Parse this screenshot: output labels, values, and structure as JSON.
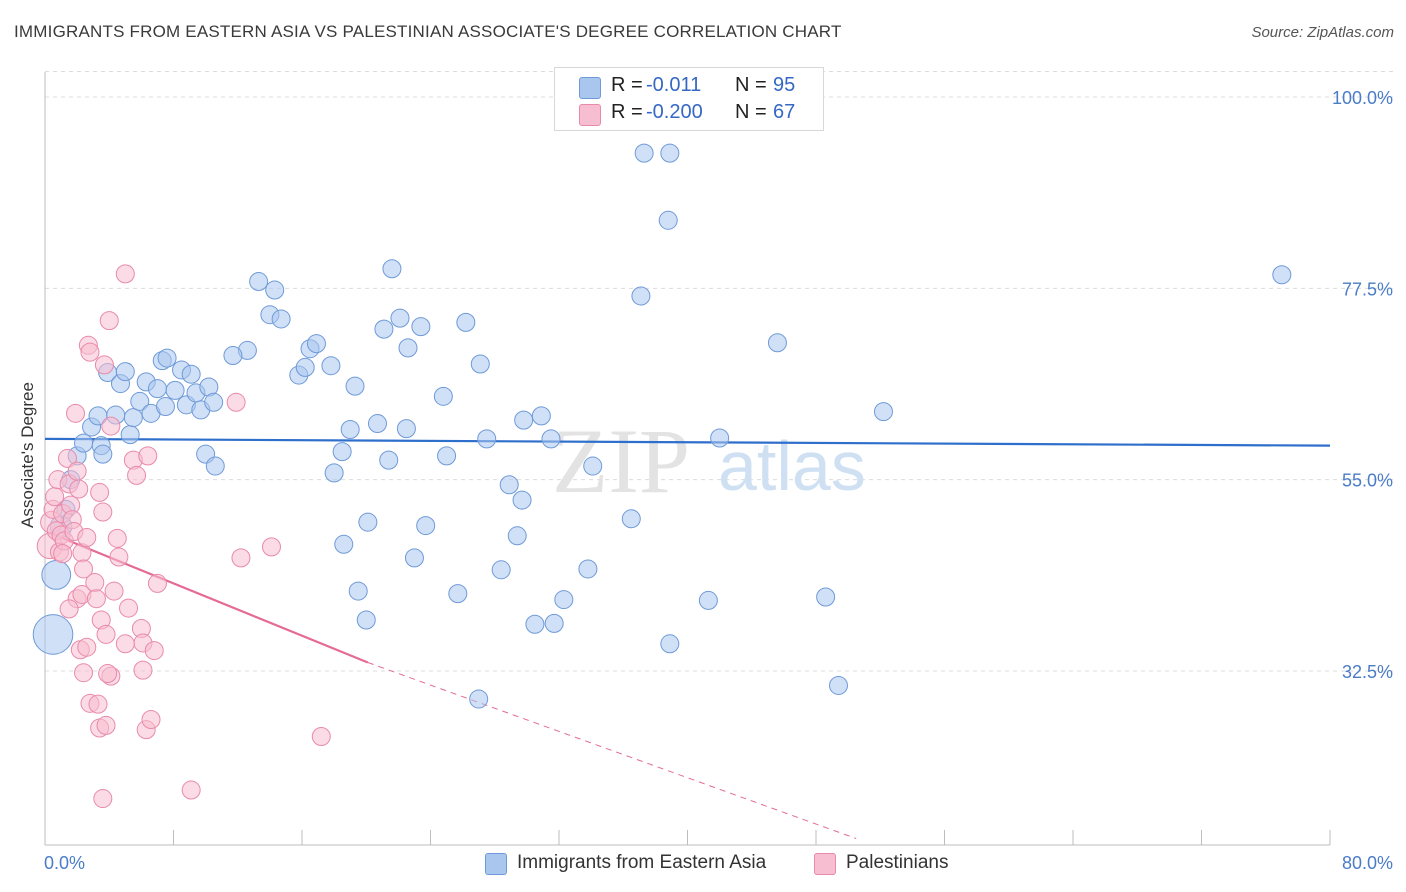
{
  "title": "IMMIGRANTS FROM EASTERN ASIA VS PALESTINIAN ASSOCIATE'S DEGREE CORRELATION CHART",
  "source": "Source: ZipAtlas.com",
  "watermark": {
    "part1": "ZIP",
    "part2": "atlas"
  },
  "legend": {
    "rows": [
      {
        "r_label": "R =",
        "r_value": "-0.011",
        "n_label": "N =",
        "n_value": "95",
        "color": "#a9c6ee",
        "edge": "#6f9ad8"
      },
      {
        "r_label": "R =",
        "r_value": "-0.200",
        "n_label": "N =",
        "n_value": "67",
        "color": "#f7bdd0",
        "edge": "#e98aab"
      }
    ]
  },
  "bottom_legend": [
    {
      "label": "Immigrants from Eastern Asia",
      "color": "#a9c6ee",
      "edge": "#6f9ad8"
    },
    {
      "label": "Palestinians",
      "color": "#f7bdd0",
      "edge": "#e98aab"
    }
  ],
  "chart_data": {
    "type": "scatter",
    "title": "IMMIGRANTS FROM EASTERN ASIA VS PALESTINIAN ASSOCIATE'S DEGREE CORRELATION CHART",
    "xlabel": "",
    "ylabel": "Associate's Degree",
    "xlim": [
      0,
      80
    ],
    "ylim": [
      13,
      103
    ],
    "x_tick_labels": [
      {
        "value": 0,
        "label": "0.0%"
      },
      {
        "value": 80,
        "label": "80.0%"
      }
    ],
    "y_tick_labels": [
      {
        "value": 100,
        "label": "100.0%"
      },
      {
        "value": 77.5,
        "label": "77.5%"
      },
      {
        "value": 55,
        "label": "55.0%"
      },
      {
        "value": 32.5,
        "label": "32.5%"
      }
    ],
    "grid": true,
    "legend_position": "top-center",
    "series": [
      {
        "name": "Immigrants from Eastern Asia",
        "color": "#a9c6ee",
        "edge": "#6f9ad8",
        "trend": {
          "x": [
            0,
            80
          ],
          "y": [
            59.8,
            59.0
          ],
          "color": "#2f6fcc"
        },
        "points": [
          [
            0.5,
            36.8,
            2.2
          ],
          [
            0.7,
            43.8,
            1.6
          ],
          [
            1.0,
            49.5,
            1.2
          ],
          [
            1.3,
            51.5,
            1.0
          ],
          [
            1.6,
            55.0,
            1.0
          ],
          [
            2.0,
            57.8,
            1.0
          ],
          [
            2.4,
            59.3,
            1.0
          ],
          [
            2.9,
            61.2,
            1.0
          ],
          [
            3.3,
            62.5,
            1.0
          ],
          [
            3.5,
            59.0,
            1.0
          ],
          [
            3.6,
            58.0,
            1.0
          ],
          [
            3.9,
            67.6,
            1.0
          ],
          [
            4.4,
            62.6,
            1.0
          ],
          [
            4.7,
            66.3,
            1.0
          ],
          [
            5.0,
            67.7,
            1.0
          ],
          [
            5.3,
            60.3,
            1.0
          ],
          [
            5.5,
            62.3,
            1.0
          ],
          [
            5.9,
            64.2,
            1.0
          ],
          [
            6.3,
            66.5,
            1.0
          ],
          [
            6.6,
            62.8,
            1.0
          ],
          [
            7.0,
            65.7,
            1.0
          ],
          [
            7.3,
            69.0,
            1.0
          ],
          [
            7.6,
            69.3,
            1.0
          ],
          [
            7.5,
            63.6,
            1.0
          ],
          [
            8.1,
            65.5,
            1.0
          ],
          [
            8.5,
            67.9,
            1.0
          ],
          [
            8.8,
            63.8,
            1.0
          ],
          [
            9.1,
            67.4,
            1.0
          ],
          [
            9.4,
            65.2,
            1.0
          ],
          [
            9.7,
            63.2,
            1.0
          ],
          [
            10.2,
            65.9,
            1.0
          ],
          [
            10.5,
            64.1,
            1.0
          ],
          [
            10.0,
            58.0,
            1.0
          ],
          [
            10.6,
            56.6,
            1.0
          ],
          [
            12.6,
            70.2,
            1.0
          ],
          [
            13.3,
            78.3,
            1.0
          ],
          [
            14.3,
            77.3,
            1.0
          ],
          [
            14.0,
            74.4,
            1.0
          ],
          [
            14.7,
            73.9,
            1.0
          ],
          [
            15.8,
            67.3,
            1.0
          ],
          [
            16.2,
            68.2,
            1.0
          ],
          [
            16.5,
            70.4,
            1.0
          ],
          [
            17.8,
            68.4,
            1.0
          ],
          [
            19.3,
            66.0,
            1.0
          ],
          [
            21.1,
            72.7,
            1.0
          ],
          [
            21.6,
            79.8,
            1.0
          ],
          [
            22.1,
            74.0,
            1.0
          ],
          [
            22.6,
            70.5,
            1.0
          ],
          [
            26.2,
            73.5,
            1.0
          ],
          [
            27.1,
            68.6,
            1.0
          ],
          [
            24.8,
            64.8,
            1.0
          ],
          [
            22.5,
            61.0,
            1.0
          ],
          [
            20.7,
            61.6,
            1.0
          ],
          [
            19.0,
            60.9,
            1.0
          ],
          [
            18.5,
            58.3,
            1.0
          ],
          [
            18.0,
            55.8,
            1.0
          ],
          [
            21.4,
            57.3,
            1.0
          ],
          [
            25.0,
            57.8,
            1.0
          ],
          [
            27.5,
            59.8,
            1.0
          ],
          [
            29.8,
            62.0,
            1.0
          ],
          [
            30.9,
            62.5,
            1.0
          ],
          [
            28.9,
            54.4,
            1.0
          ],
          [
            29.7,
            52.6,
            1.0
          ],
          [
            23.7,
            49.6,
            1.0
          ],
          [
            20.1,
            50.0,
            1.0
          ],
          [
            18.6,
            47.4,
            1.0
          ],
          [
            23.0,
            45.8,
            1.0
          ],
          [
            28.4,
            44.4,
            1.0
          ],
          [
            29.4,
            48.4,
            1.0
          ],
          [
            33.8,
            44.5,
            1.0
          ],
          [
            25.7,
            41.6,
            1.0
          ],
          [
            19.5,
            41.9,
            1.0
          ],
          [
            20.0,
            38.5,
            1.0
          ],
          [
            30.5,
            38.0,
            1.0
          ],
          [
            32.3,
            40.9,
            1.0
          ],
          [
            31.7,
            38.1,
            1.0
          ],
          [
            34.1,
            56.6,
            1.0
          ],
          [
            36.5,
            50.4,
            1.0
          ],
          [
            37.3,
            93.4,
            1.0
          ],
          [
            38.9,
            93.4,
            1.0
          ],
          [
            38.8,
            85.5,
            1.0
          ],
          [
            37.1,
            76.6,
            1.0
          ],
          [
            42.0,
            59.9,
            1.0
          ],
          [
            38.9,
            35.7,
            1.0
          ],
          [
            45.6,
            71.1,
            1.0
          ],
          [
            52.2,
            63.0,
            1.0
          ],
          [
            48.6,
            41.2,
            1.0
          ],
          [
            41.3,
            40.8,
            1.0
          ],
          [
            49.4,
            30.8,
            1.0
          ],
          [
            27.0,
            29.2,
            1.0
          ],
          [
            77.0,
            79.1,
            1.0
          ],
          [
            23.4,
            73.0,
            1.0
          ],
          [
            31.5,
            59.8,
            1.0
          ],
          [
            11.7,
            69.6,
            1.0
          ],
          [
            16.9,
            71.0,
            1.0
          ]
        ]
      },
      {
        "name": "Palestinians",
        "color": "#f7bdd0",
        "edge": "#e98aab",
        "trend": {
          "x": [
            0.2,
            20.1
          ],
          "y": [
            48.8,
            33.5
          ],
          "color": "#e56b96",
          "dash_to": [
            50.5,
            12.8
          ]
        },
        "points": [
          [
            0.3,
            47.2,
            1.4
          ],
          [
            0.4,
            50.0,
            1.2
          ],
          [
            0.5,
            51.5,
            1.0
          ],
          [
            0.6,
            53.0,
            1.0
          ],
          [
            0.7,
            49.0,
            1.0
          ],
          [
            0.8,
            55.0,
            1.0
          ],
          [
            0.9,
            46.5,
            1.0
          ],
          [
            1.0,
            48.5,
            1.0
          ],
          [
            1.1,
            51.0,
            1.0
          ],
          [
            1.2,
            47.8,
            1.0
          ],
          [
            1.4,
            57.5,
            1.0
          ],
          [
            1.5,
            54.5,
            1.0
          ],
          [
            1.6,
            52.0,
            1.0
          ],
          [
            1.7,
            50.3,
            1.0
          ],
          [
            1.8,
            48.9,
            1.0
          ],
          [
            1.9,
            62.8,
            1.0
          ],
          [
            2.0,
            56.0,
            1.0
          ],
          [
            2.1,
            53.9,
            1.0
          ],
          [
            2.3,
            46.4,
            1.0
          ],
          [
            2.4,
            44.5,
            1.0
          ],
          [
            2.0,
            41.0,
            1.0
          ],
          [
            2.3,
            41.5,
            1.0
          ],
          [
            2.6,
            48.2,
            1.0
          ],
          [
            2.7,
            70.8,
            1.0
          ],
          [
            2.8,
            70.0,
            1.0
          ],
          [
            3.1,
            42.9,
            1.0
          ],
          [
            3.2,
            41.0,
            1.0
          ],
          [
            3.4,
            53.5,
            1.0
          ],
          [
            3.5,
            38.5,
            1.0
          ],
          [
            3.8,
            36.8,
            1.0
          ],
          [
            3.6,
            51.2,
            1.0
          ],
          [
            3.7,
            68.5,
            1.0
          ],
          [
            4.0,
            73.7,
            1.0
          ],
          [
            4.1,
            61.3,
            1.0
          ],
          [
            4.3,
            41.9,
            1.0
          ],
          [
            4.5,
            48.1,
            1.0
          ],
          [
            4.6,
            45.9,
            1.0
          ],
          [
            5.0,
            79.2,
            1.0
          ],
          [
            5.2,
            39.9,
            1.0
          ],
          [
            5.5,
            57.3,
            1.0
          ],
          [
            5.7,
            55.5,
            1.0
          ],
          [
            6.0,
            37.5,
            1.0
          ],
          [
            6.1,
            35.8,
            1.0
          ],
          [
            6.4,
            57.8,
            1.0
          ],
          [
            6.1,
            32.6,
            1.0
          ],
          [
            7.0,
            42.8,
            1.0
          ],
          [
            2.2,
            35.0,
            1.0
          ],
          [
            2.4,
            32.3,
            1.0
          ],
          [
            2.8,
            28.7,
            1.0
          ],
          [
            3.3,
            28.6,
            1.0
          ],
          [
            3.4,
            25.8,
            1.0
          ],
          [
            3.8,
            26.1,
            1.0
          ],
          [
            6.3,
            25.6,
            1.0
          ],
          [
            6.6,
            26.8,
            1.0
          ],
          [
            4.1,
            31.9,
            1.0
          ],
          [
            3.6,
            17.5,
            1.0
          ],
          [
            9.1,
            18.5,
            1.0
          ],
          [
            17.2,
            24.8,
            1.0
          ],
          [
            12.2,
            45.8,
            1.0
          ],
          [
            14.1,
            47.1,
            1.0
          ],
          [
            11.9,
            64.1,
            1.0
          ],
          [
            3.9,
            32.2,
            1.0
          ],
          [
            1.1,
            46.3,
            1.0
          ],
          [
            1.5,
            39.8,
            1.0
          ],
          [
            2.6,
            35.3,
            1.0
          ],
          [
            5.0,
            35.7,
            1.0
          ],
          [
            6.8,
            34.9,
            1.0
          ]
        ]
      }
    ]
  }
}
